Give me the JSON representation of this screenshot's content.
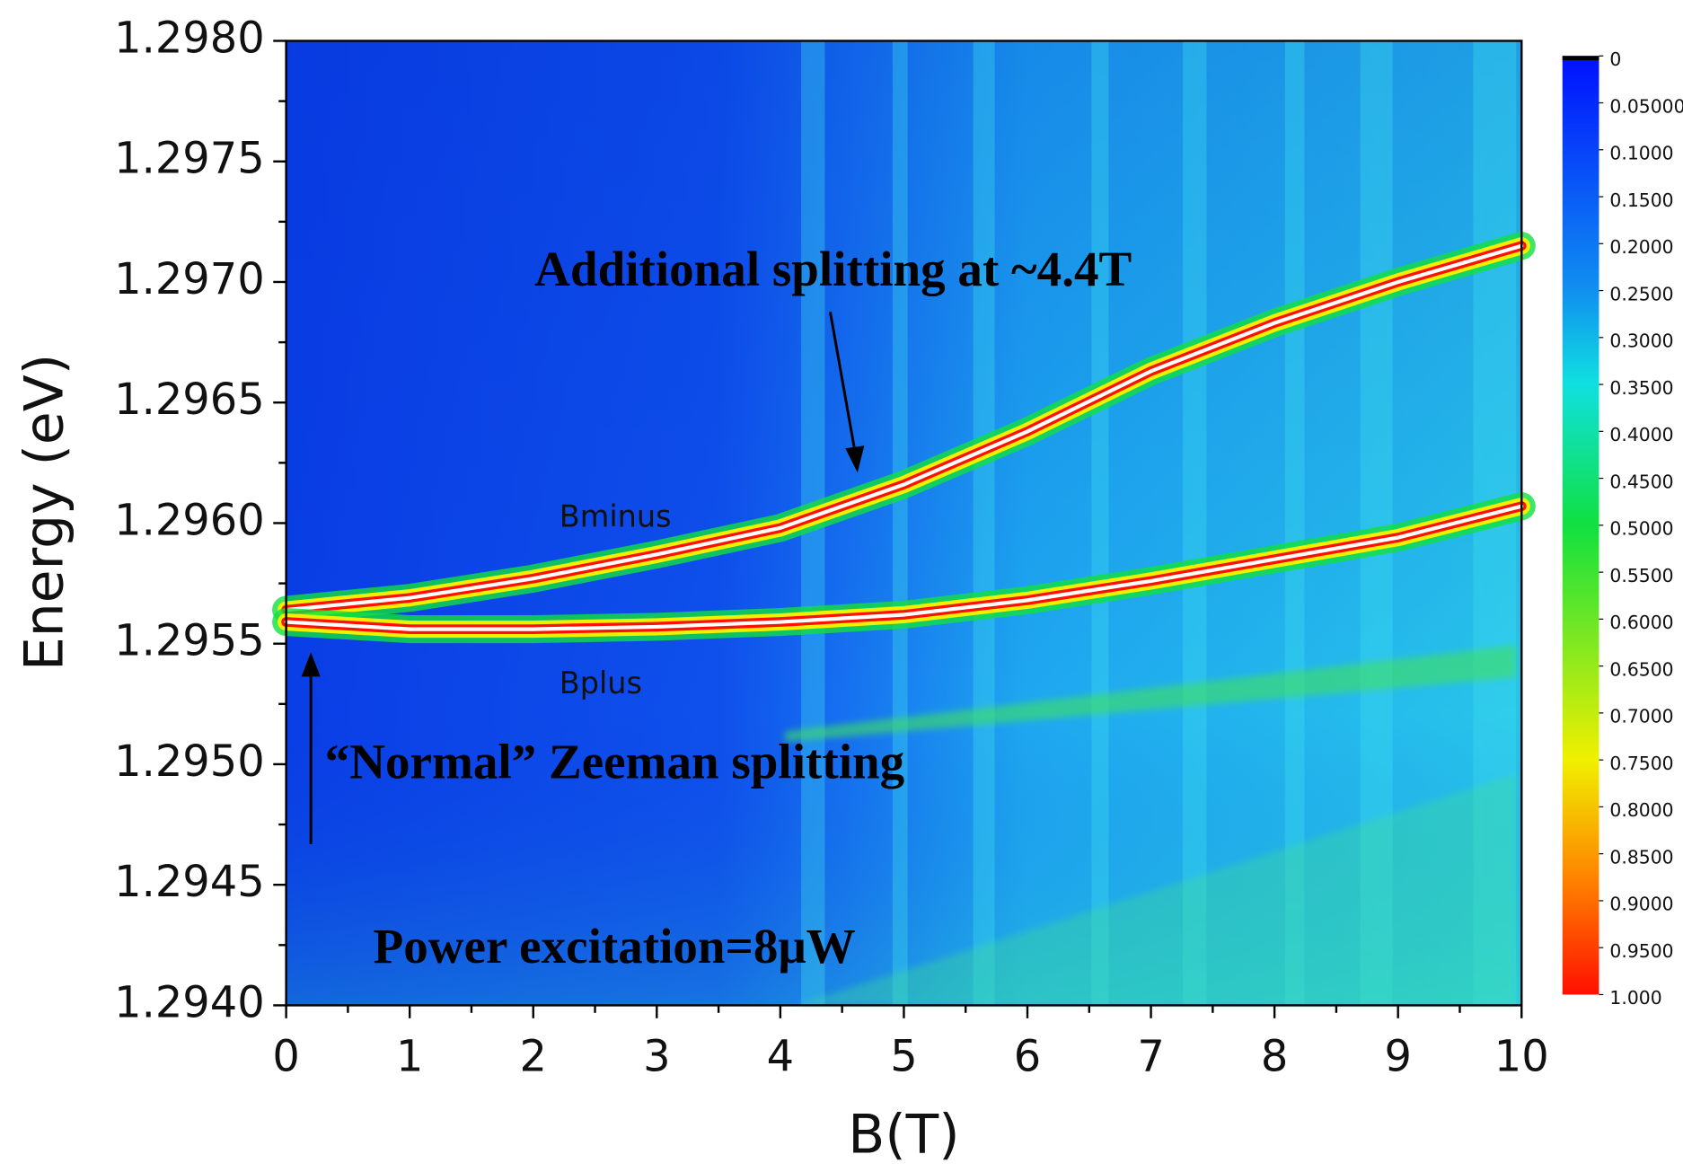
{
  "chart_data": {
    "type": "heatmap",
    "x_label": "B(T)",
    "y_label": "Energy (eV)",
    "xlim": [
      0,
      10
    ],
    "ylim": [
      1.294,
      1.298
    ],
    "xticks": [
      0,
      1,
      2,
      3,
      4,
      5,
      6,
      7,
      8,
      9,
      10
    ],
    "xminorticks": [
      0.5,
      1.5,
      2.5,
      3.5,
      4.5,
      5.5,
      6.5,
      7.5,
      8.5,
      9.5
    ],
    "yticks": [
      {
        "value": 1.294,
        "label": "1.2940"
      },
      {
        "value": 1.2945,
        "label": "1.2945"
      },
      {
        "value": 1.295,
        "label": "1.2950"
      },
      {
        "value": 1.2955,
        "label": "1.2955"
      },
      {
        "value": 1.296,
        "label": "1.2960"
      },
      {
        "value": 1.2965,
        "label": "1.2965"
      },
      {
        "value": 1.297,
        "label": "1.2970"
      },
      {
        "value": 1.2975,
        "label": "1.2975"
      },
      {
        "value": 1.298,
        "label": "1.2980"
      }
    ],
    "yminorticks": [
      1.29425,
      1.29475,
      1.29525,
      1.29575,
      1.29625,
      1.29675,
      1.29725,
      1.29775
    ],
    "zlim": [
      0,
      1
    ],
    "zticks": [
      0,
      {
        "value": 0.05,
        "label": "0.05000"
      },
      {
        "value": 0.1,
        "label": "0.1000"
      },
      {
        "value": 0.15,
        "label": "0.1500"
      },
      {
        "value": 0.2,
        "label": "0.2000"
      },
      {
        "value": 0.25,
        "label": "0.2500"
      },
      {
        "value": 0.3,
        "label": "0.3000"
      },
      {
        "value": 0.35,
        "label": "0.3500"
      },
      {
        "value": 0.4,
        "label": "0.4000"
      },
      {
        "value": 0.45,
        "label": "0.4500"
      },
      {
        "value": 0.5,
        "label": "0.5000"
      },
      {
        "value": 0.55,
        "label": "0.5500"
      },
      {
        "value": 0.6,
        "label": "0.6000"
      },
      {
        "value": 0.65,
        "label": "0.6500"
      },
      {
        "value": 0.7,
        "label": "0.7000"
      },
      {
        "value": 0.75,
        "label": "0.7500"
      },
      {
        "value": 0.8,
        "label": "0.8000"
      },
      {
        "value": 0.85,
        "label": "0.8500"
      },
      {
        "value": 0.9,
        "label": "0.9000"
      },
      {
        "value": 0.95,
        "label": "0.9500"
      },
      {
        "value": 1,
        "label": "1.000"
      }
    ],
    "colorscale": [
      [
        0,
        "#0010ff"
      ],
      [
        0.25,
        "#1090f0"
      ],
      [
        0.35,
        "#10e0e0"
      ],
      [
        0.5,
        "#10e040"
      ],
      [
        0.75,
        "#f0f000"
      ],
      [
        0.88,
        "#ff8000"
      ],
      [
        1,
        "#ff1000"
      ]
    ],
    "series": [
      {
        "name": "Bminus",
        "x": [
          0,
          1,
          2,
          3,
          4,
          5,
          6,
          7,
          8,
          9,
          10
        ],
        "values": [
          1.29564,
          1.29569,
          1.29577,
          1.29587,
          1.29598,
          1.29616,
          1.29638,
          1.29663,
          1.29683,
          1.297,
          1.29715
        ]
      },
      {
        "name": "Bplus",
        "x": [
          0,
          1,
          2,
          3,
          4,
          5,
          6,
          7,
          8,
          9,
          10
        ],
        "values": [
          1.29559,
          1.29556,
          1.29556,
          1.29557,
          1.29559,
          1.29562,
          1.29568,
          1.29576,
          1.29585,
          1.29594,
          1.29607
        ]
      }
    ],
    "annotations": [
      "Additional splitting at ~4.4T",
      "“Normal” Zeeman splitting",
      "Power excitation=8μW"
    ]
  }
}
